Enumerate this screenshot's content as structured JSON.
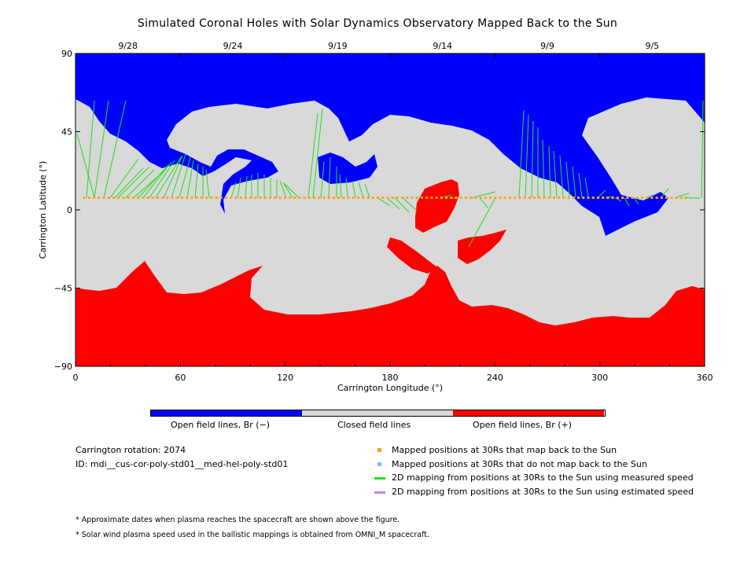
{
  "chart_data": {
    "type": "map",
    "title": "Simulated Coronal Holes with Solar Dynamics Observatory Mapped Back to the Sun",
    "xlabel": "Carrington Longitude (°)",
    "ylabel": "Carrington Latitude (°)",
    "xlim": [
      0,
      360
    ],
    "ylim": [
      -90,
      90
    ],
    "x_ticks": [
      0,
      60,
      120,
      180,
      240,
      300,
      360
    ],
    "y_ticks": [
      -90,
      -45,
      0,
      45,
      90
    ],
    "top_axis_dates": [
      {
        "label": "9/28",
        "lon": 30
      },
      {
        "label": "9/24",
        "lon": 90
      },
      {
        "label": "9/19",
        "lon": 150
      },
      {
        "label": "9/14",
        "lon": 210
      },
      {
        "label": "9/9",
        "lon": 270
      },
      {
        "label": "9/5",
        "lon": 330
      }
    ],
    "grid": false,
    "colors": {
      "open_negative": "#0000ff",
      "closed": "#d9d9d9",
      "open_positive": "#ff0000",
      "mapped_back": "#f5a623",
      "not_mapped": "#7fbfff",
      "measured_speed": "#22dd22",
      "estimated_speed": "#bb88ee"
    },
    "colorbar_labels": [
      "Open field lines, Br (−)",
      "Closed field lines",
      "Open field lines, Br (+)"
    ],
    "footpoint_latitude": 7
  },
  "info": {
    "rotation": "Carrington rotation: 2074",
    "id": "ID: mdi__cus-cor-poly-std01__med-hel-poly-std01"
  },
  "legend": {
    "items": [
      {
        "label": "Mapped positions at 30Rs that map back to the Sun",
        "color": "#f5a623",
        "kind": "square"
      },
      {
        "label": "Mapped positions at 30Rs that do not map back to the Sun",
        "color": "#7fbfff",
        "kind": "square"
      },
      {
        "label": "2D mapping from positions at 30Rs to the Sun using measured speed",
        "color": "#22dd22",
        "kind": "line"
      },
      {
        "label": "2D mapping from positions at 30Rs to the Sun using estimated speed",
        "color": "#bb88ee",
        "kind": "line"
      }
    ]
  },
  "notes": [
    "* Approximate dates when plasma reaches the spacecraft are shown above the figure.",
    "* Solar wind plasma speed used in the ballistic mappings is obtained from OMNI_M spacecraft."
  ]
}
